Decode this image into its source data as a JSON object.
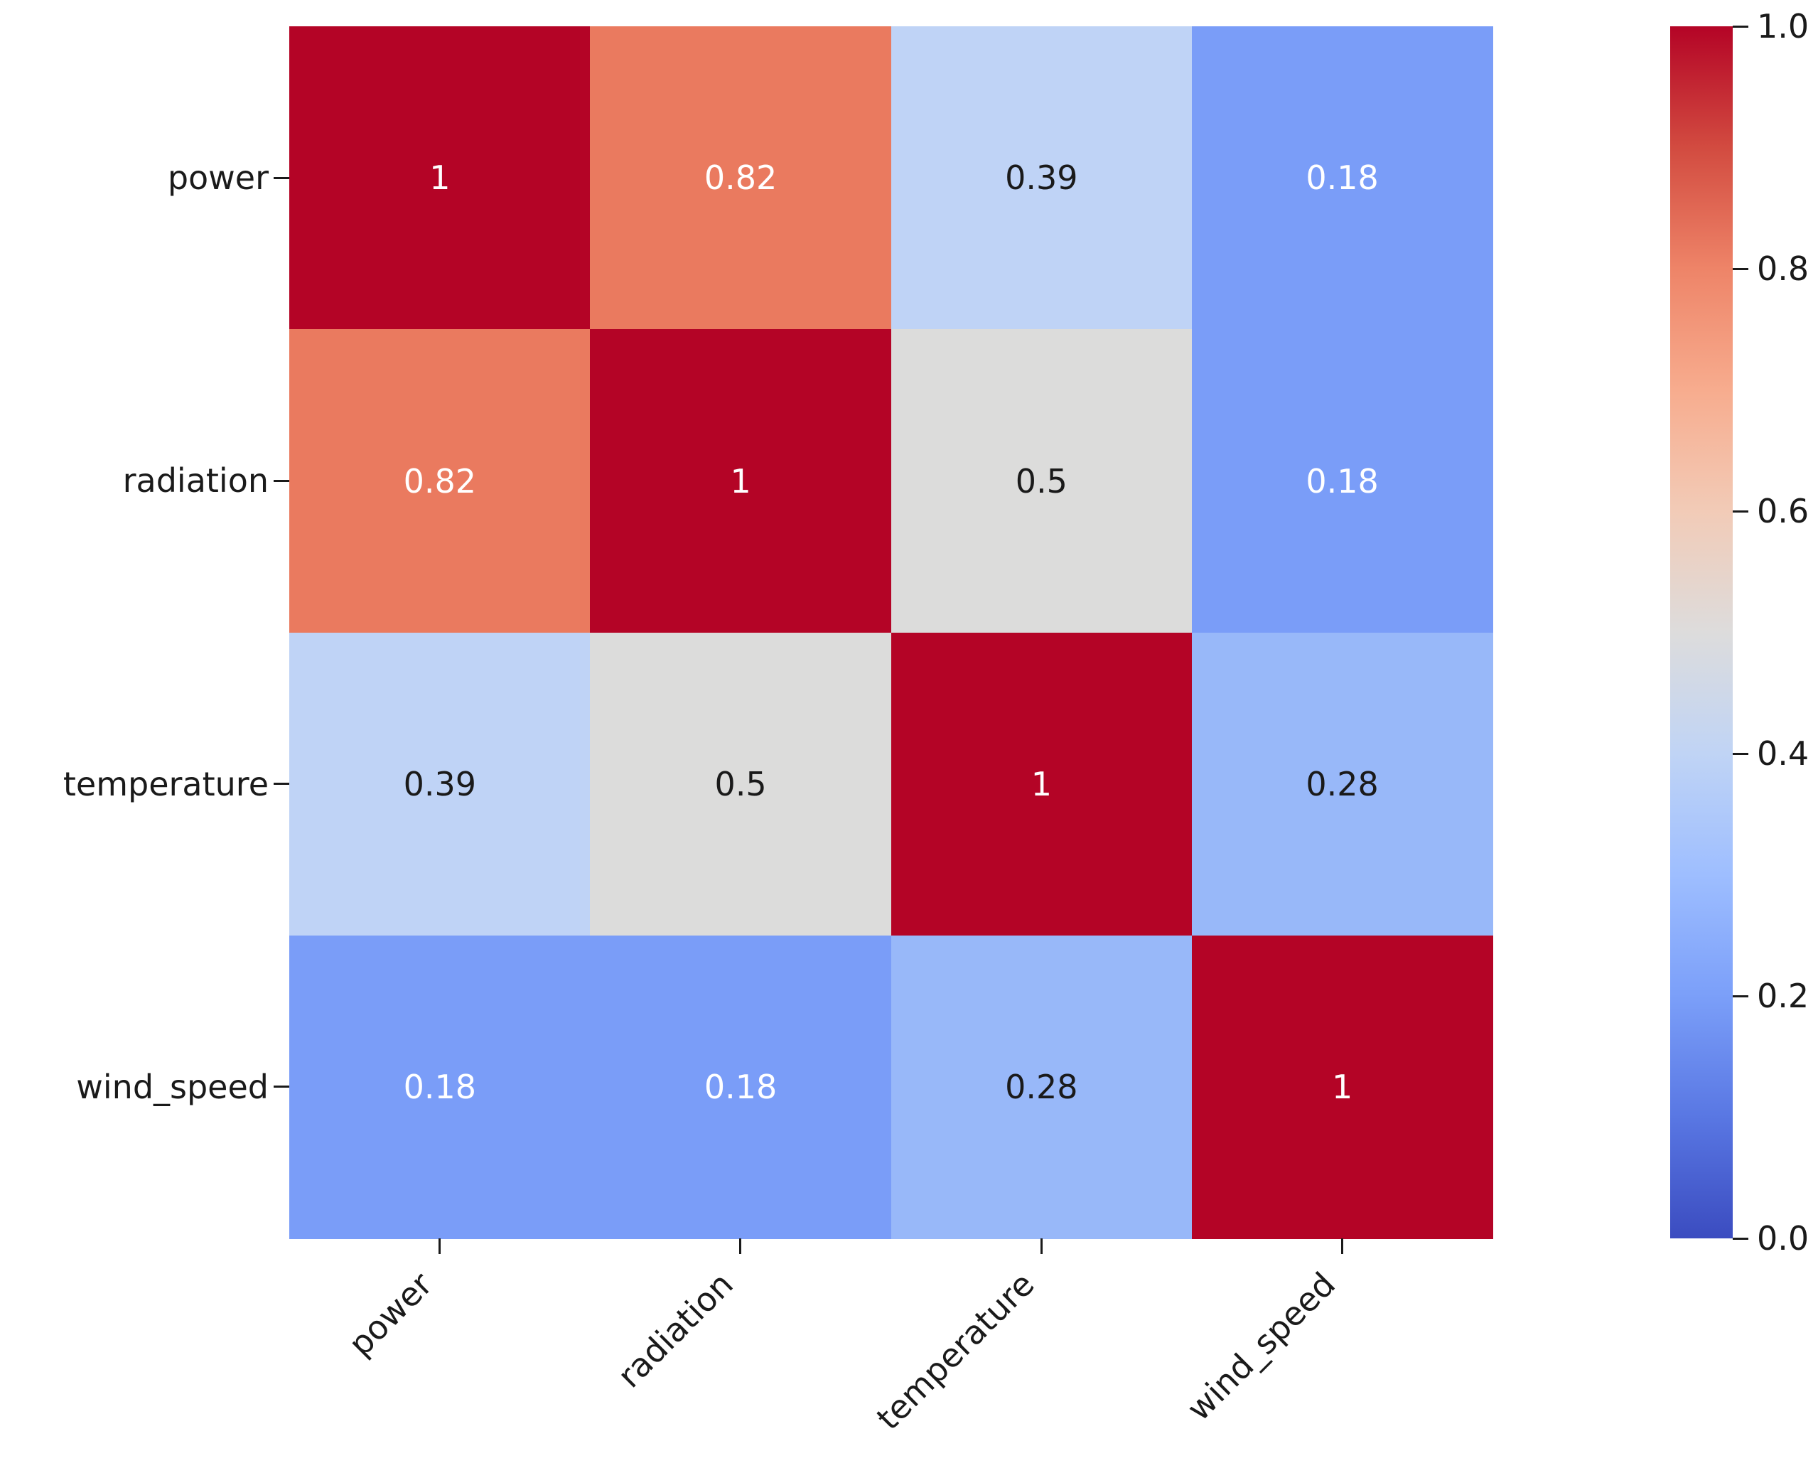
{
  "chart_data": {
    "type": "heatmap",
    "title": "",
    "variables": [
      "power",
      "radiation",
      "temperature",
      "wind_speed"
    ],
    "matrix": [
      [
        1,
        0.82,
        0.39,
        0.18
      ],
      [
        0.82,
        1,
        0.5,
        0.18
      ],
      [
        0.39,
        0.5,
        1,
        0.28
      ],
      [
        0.18,
        0.18,
        0.28,
        1
      ]
    ],
    "cell_text": [
      [
        "1",
        "0.82",
        "0.39",
        "0.18"
      ],
      [
        "0.82",
        "1",
        "0.5",
        "0.18"
      ],
      [
        "0.39",
        "0.5",
        "1",
        "0.28"
      ],
      [
        "0.18",
        "0.18",
        "0.28",
        "1"
      ]
    ],
    "colormap": "coolwarm",
    "vmin": 0.0,
    "vmax": 1.0,
    "colorbar_ticks": [
      "1.0",
      "0.8",
      "0.6",
      "0.4",
      "0.2",
      "0.0"
    ],
    "colorbar_position": "right",
    "x_tick_rotation_deg": 45,
    "grid": false
  },
  "style": {
    "background": "#ffffff",
    "label_color": "#1a1a1a",
    "tick_color": "#1a1a1a",
    "cell_colors": {
      "1": "#b40426",
      "0.82": "#ea7a5f",
      "0.5": "#dcdcdb",
      "0.39": "#bfd3f6",
      "0.28": "#98b8f9",
      "0.18": "#7a9df8"
    },
    "cell_text_colors": {
      "1": "#ffffff",
      "0.82": "#ffffff",
      "0.5": "#1a1a1a",
      "0.39": "#1a1a1a",
      "0.28": "#1a1a1a",
      "0.18": "#ffffff"
    },
    "colorbar_gradient_top_to_bottom": [
      "#b40426",
      "#d24b40",
      "#ee8468",
      "#f7ac8e",
      "#f2cbb7",
      "#dddcdc",
      "#c0d4f5",
      "#9ebeff",
      "#7b9ff9",
      "#5977e3",
      "#3b4cc0"
    ]
  }
}
